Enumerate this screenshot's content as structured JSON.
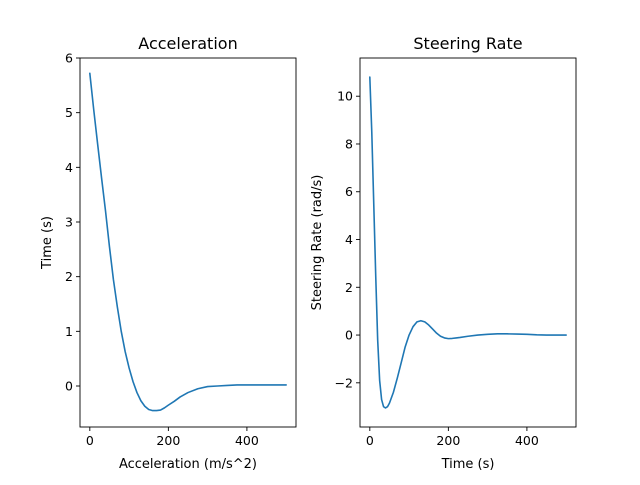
{
  "chart_data": [
    {
      "type": "line",
      "title": "Acceleration",
      "xlabel": "Acceleration (m/s^2)",
      "ylabel": "Time (s)",
      "xlim": [
        -25,
        525
      ],
      "ylim": [
        -0.75,
        6.0
      ],
      "xticks": [
        0,
        200,
        400
      ],
      "yticks": [
        0,
        1,
        2,
        3,
        4,
        5,
        6
      ],
      "xtick_labels": [
        "0",
        "200",
        "400"
      ],
      "ytick_labels": [
        "0",
        "1",
        "2",
        "3",
        "4",
        "5",
        "6"
      ],
      "grid": false,
      "line_color": "#1f77b4",
      "series": [
        {
          "x": [
            0,
            10,
            20,
            30,
            40,
            50,
            60,
            70,
            80,
            90,
            100,
            110,
            120,
            130,
            140,
            150,
            160,
            170,
            180,
            190,
            200,
            215,
            230,
            250,
            275,
            300,
            325,
            350,
            375,
            400,
            425,
            450,
            475,
            500
          ],
          "y": [
            5.72,
            5.05,
            4.42,
            3.8,
            3.2,
            2.55,
            1.95,
            1.45,
            1.0,
            0.63,
            0.33,
            0.08,
            -0.12,
            -0.27,
            -0.37,
            -0.43,
            -0.45,
            -0.45,
            -0.44,
            -0.4,
            -0.35,
            -0.28,
            -0.2,
            -0.12,
            -0.05,
            -0.01,
            0.0,
            0.01,
            0.02,
            0.02,
            0.02,
            0.02,
            0.02,
            0.02
          ]
        }
      ]
    },
    {
      "type": "line",
      "title": "Steering Rate",
      "xlabel": "Time (s)",
      "ylabel": "Steering Rate (rad/s)",
      "xlim": [
        -25,
        525
      ],
      "ylim": [
        -3.85,
        11.6
      ],
      "xticks": [
        0,
        200,
        400
      ],
      "yticks": [
        -2,
        0,
        2,
        4,
        6,
        8,
        10
      ],
      "xtick_labels": [
        "0",
        "200",
        "400"
      ],
      "ytick_labels": [
        "−2",
        "0",
        "2",
        "4",
        "6",
        "8",
        "10"
      ],
      "grid": false,
      "line_color": "#1f77b4",
      "series": [
        {
          "x": [
            0,
            5,
            10,
            15,
            20,
            25,
            30,
            35,
            40,
            45,
            50,
            60,
            70,
            80,
            90,
            100,
            110,
            120,
            130,
            140,
            150,
            160,
            170,
            180,
            190,
            200,
            210,
            220,
            230,
            250,
            275,
            300,
            325,
            350,
            375,
            400,
            425,
            450,
            475,
            500
          ],
          "y": [
            10.8,
            8.5,
            5.5,
            2.5,
            -0.2,
            -1.9,
            -2.7,
            -3.0,
            -3.05,
            -3.0,
            -2.85,
            -2.4,
            -1.8,
            -1.15,
            -0.5,
            0.0,
            0.35,
            0.55,
            0.6,
            0.55,
            0.42,
            0.25,
            0.08,
            -0.05,
            -0.12,
            -0.15,
            -0.14,
            -0.12,
            -0.1,
            -0.05,
            0.0,
            0.03,
            0.05,
            0.05,
            0.04,
            0.03,
            0.01,
            0.0,
            0.0,
            0.0
          ]
        }
      ]
    }
  ]
}
